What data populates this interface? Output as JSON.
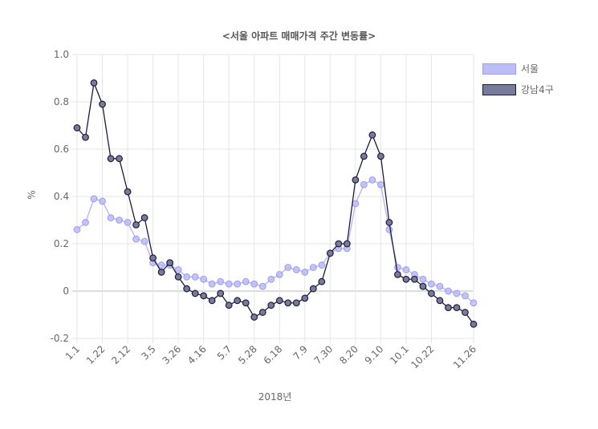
{
  "chart_data": {
    "type": "line",
    "title": "<서울 아파트 매매가격 주간 변동률>",
    "xlabel": "2018년",
    "ylabel": "%",
    "ylim": [
      -0.2,
      1.0
    ],
    "y_ticks": [
      "1.0",
      "0.8",
      "0.6",
      "0.4",
      "0.2",
      "0",
      "-0.2"
    ],
    "x": [
      "1.1",
      "1.8",
      "1.15",
      "1.22",
      "1.29",
      "2.5",
      "2.12",
      "2.19",
      "2.26",
      "3.5",
      "3.12",
      "3.19",
      "3.26",
      "4.2",
      "4.9",
      "4.16",
      "4.23",
      "4.30",
      "5.7",
      "5.14",
      "5.21",
      "5.28",
      "6.4",
      "6.11",
      "6.18",
      "6.25",
      "7.2",
      "7.9",
      "7.16",
      "7.23",
      "7.30",
      "8.6",
      "8.13",
      "8.20",
      "8.27",
      "9.3",
      "9.10",
      "9.17",
      "9.24",
      "10.1",
      "10.8",
      "10.15",
      "10.22",
      "10.29",
      "11.5",
      "11.12",
      "11.19",
      "11.26"
    ],
    "x_tick_labels": [
      "1.1",
      "1.22",
      "2.12",
      "3.5",
      "3.26",
      "4.16",
      "5.7",
      "5.28",
      "6.18",
      "7.9",
      "7.30",
      "8.20",
      "9.10",
      "10.1",
      "10.22",
      "11.26"
    ],
    "grid": true,
    "legend": "right",
    "series": [
      {
        "name": "서울",
        "color": "#9f9ff5",
        "fill": "#bcbcf7",
        "values": [
          0.26,
          0.29,
          0.39,
          0.38,
          0.31,
          0.3,
          0.29,
          0.22,
          0.21,
          0.12,
          0.11,
          0.11,
          0.09,
          0.06,
          0.06,
          0.05,
          0.03,
          0.04,
          0.03,
          0.03,
          0.04,
          0.03,
          0.02,
          0.05,
          0.07,
          0.1,
          0.09,
          0.08,
          0.1,
          0.11,
          0.16,
          0.18,
          0.18,
          0.37,
          0.45,
          0.47,
          0.45,
          0.26,
          0.1,
          0.09,
          0.07,
          0.05,
          0.03,
          0.02,
          0.0,
          -0.01,
          -0.02,
          -0.05
        ]
      },
      {
        "name": "강남4구",
        "color": "#1c1c3c",
        "fill": "#7a7a9a",
        "values": [
          0.69,
          0.65,
          0.88,
          0.79,
          0.56,
          0.56,
          0.42,
          0.28,
          0.31,
          0.14,
          0.08,
          0.12,
          0.06,
          0.01,
          -0.01,
          -0.02,
          -0.04,
          -0.01,
          -0.06,
          -0.04,
          -0.05,
          -0.11,
          -0.09,
          -0.06,
          -0.04,
          -0.05,
          -0.05,
          -0.03,
          0.01,
          0.04,
          0.16,
          0.2,
          0.2,
          0.47,
          0.57,
          0.66,
          0.57,
          0.29,
          0.07,
          0.05,
          0.05,
          0.02,
          -0.01,
          -0.04,
          -0.07,
          -0.07,
          -0.09,
          -0.14
        ]
      }
    ]
  }
}
